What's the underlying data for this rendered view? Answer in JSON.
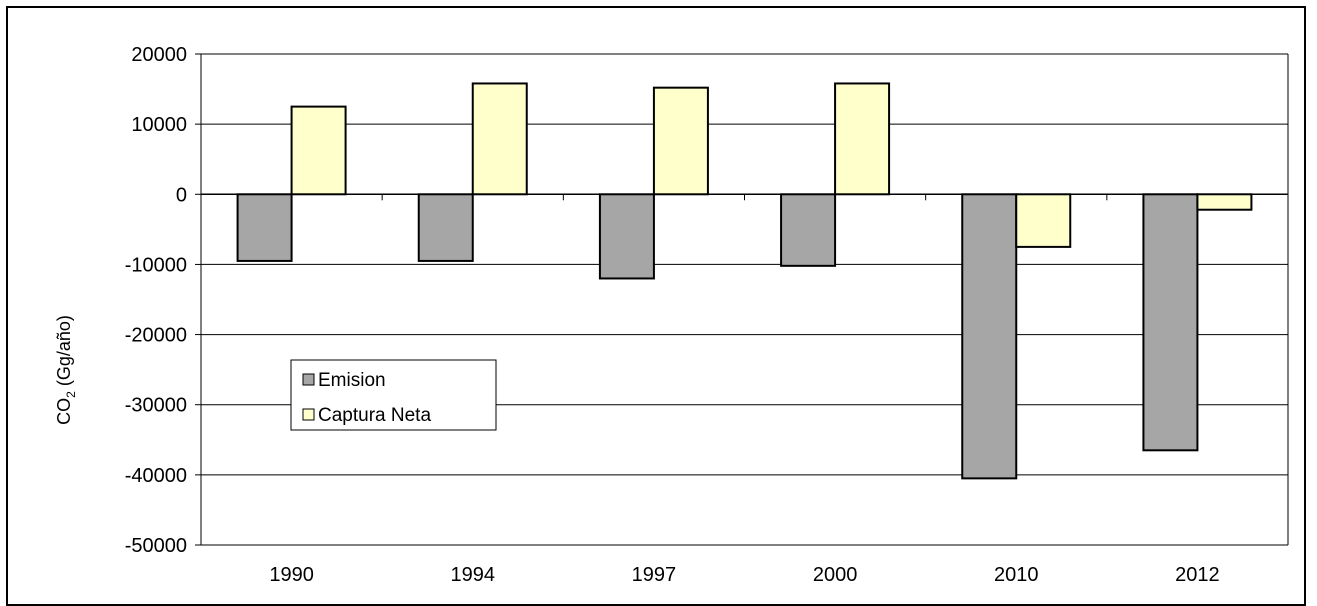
{
  "chart_data": {
    "type": "bar",
    "categories": [
      "1990",
      "1994",
      "1997",
      "2000",
      "2010",
      "2012"
    ],
    "series": [
      {
        "name": "Emision",
        "values": [
          -9500,
          -9500,
          -12000,
          -10200,
          -40500,
          -36500
        ],
        "color": "#a6a6a6"
      },
      {
        "name": "Captura Neta",
        "values": [
          12500,
          15800,
          15200,
          15800,
          -7500,
          -2200
        ],
        "color": "#ffffcc"
      }
    ],
    "ylabel": "CO2 (Gg/año)",
    "ylabel_main": "CO",
    "ylabel_sub": "2",
    "ylabel_rest": " (Gg/año)",
    "ylim": [
      -50000,
      20000
    ],
    "yticks": [
      "20000",
      "10000",
      "0",
      "-10000",
      "-20000",
      "-30000",
      "-40000",
      "-50000"
    ],
    "grid": true,
    "legend_position": "left"
  }
}
